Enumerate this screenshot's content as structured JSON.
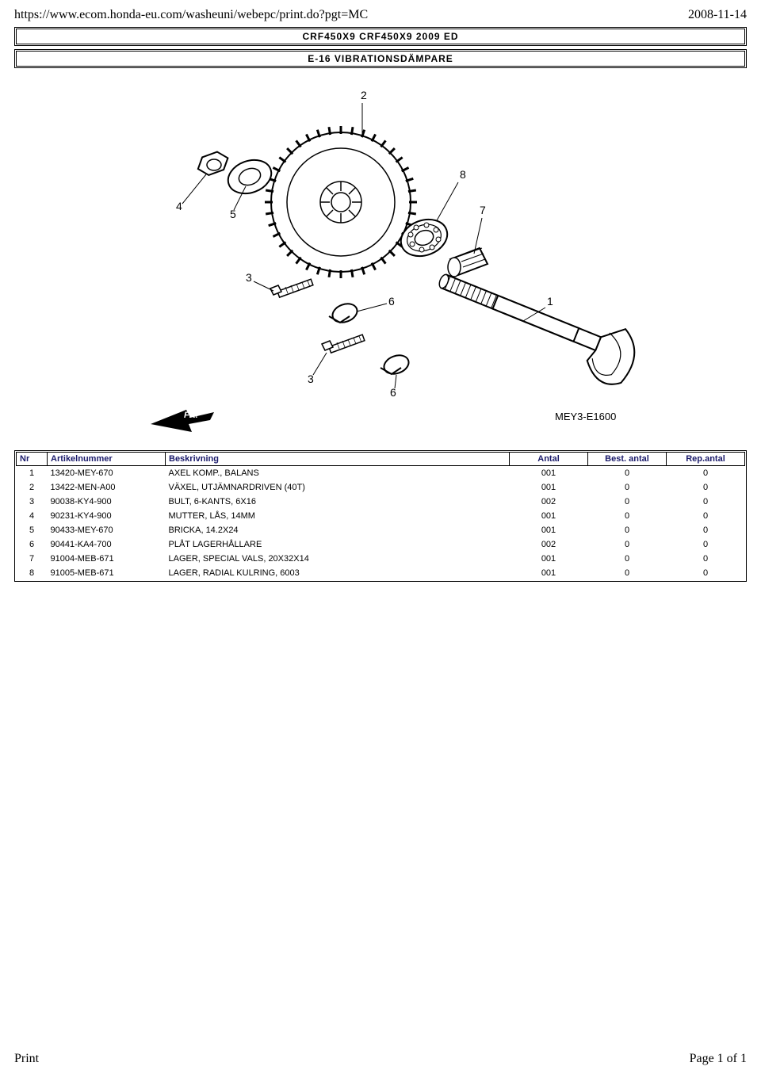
{
  "header": {
    "url": "https://www.ecom.honda-eu.com/washeuni/webepc/print.do?pgt=MC",
    "date": "2008-11-14"
  },
  "titles": {
    "model": "CRF450X9 CRF450X9 2009 ED",
    "section": "E-16 VIBRATIONSDÄMPARE"
  },
  "diagram": {
    "code": "MEY3-E1600",
    "fr_label": "FR.",
    "callouts": [
      "1",
      "2",
      "3",
      "4",
      "5",
      "6",
      "7",
      "8"
    ]
  },
  "table": {
    "columns": {
      "nr": "Nr",
      "artikelnummer": "Artikelnummer",
      "beskrivning": "Beskrivning",
      "antal": "Antal",
      "best_antal": "Best. antal",
      "rep_antal": "Rep.antal"
    },
    "rows": [
      {
        "nr": "1",
        "art": "13420-MEY-670",
        "desc": "AXEL KOMP., BALANS",
        "antal": "001",
        "best": "0",
        "rep": "0"
      },
      {
        "nr": "2",
        "art": "13422-MEN-A00",
        "desc": "VÄXEL, UTJÄMNARDRIVEN (40T)",
        "antal": "001",
        "best": "0",
        "rep": "0"
      },
      {
        "nr": "3",
        "art": "90038-KY4-900",
        "desc": "BULT, 6-KANTS, 6X16",
        "antal": "002",
        "best": "0",
        "rep": "0"
      },
      {
        "nr": "4",
        "art": "90231-KY4-900",
        "desc": "MUTTER, LÅS, 14MM",
        "antal": "001",
        "best": "0",
        "rep": "0"
      },
      {
        "nr": "5",
        "art": "90433-MEY-670",
        "desc": "BRICKA, 14.2X24",
        "antal": "001",
        "best": "0",
        "rep": "0"
      },
      {
        "nr": "6",
        "art": "90441-KA4-700",
        "desc": "PLÅT LAGERHÅLLARE",
        "antal": "002",
        "best": "0",
        "rep": "0"
      },
      {
        "nr": "7",
        "art": "91004-MEB-671",
        "desc": "LAGER, SPECIAL VALS, 20X32X14",
        "antal": "001",
        "best": "0",
        "rep": "0"
      },
      {
        "nr": "8",
        "art": "91005-MEB-671",
        "desc": "LAGER, RADIAL KULRING, 6003",
        "antal": "001",
        "best": "0",
        "rep": "0"
      }
    ]
  },
  "footer": {
    "left": "Print",
    "right": "Page 1 of 1"
  }
}
